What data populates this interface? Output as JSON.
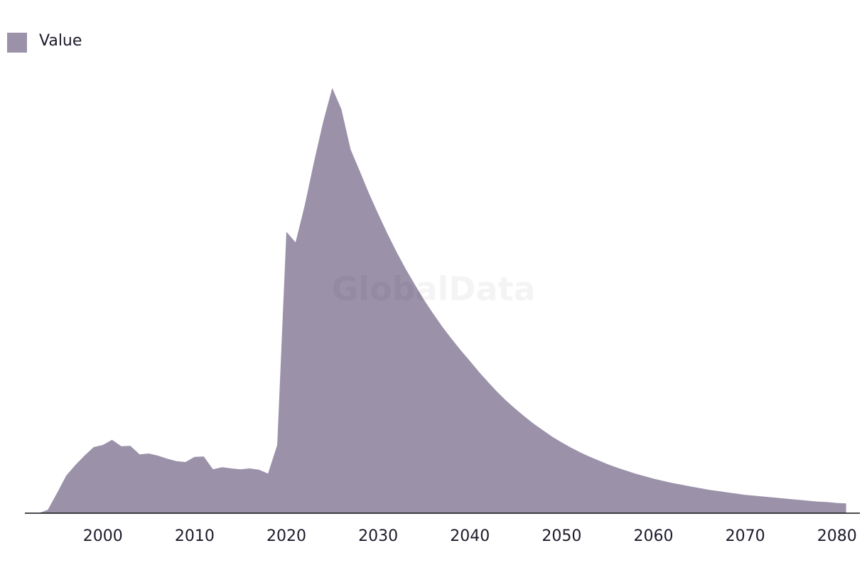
{
  "chart_data": {
    "type": "area",
    "watermark": "GlobalData",
    "x": [
      1993,
      1994,
      1995,
      1996,
      1997,
      1998,
      1999,
      2000,
      2001,
      2002,
      2003,
      2004,
      2005,
      2006,
      2007,
      2008,
      2009,
      2010,
      2011,
      2012,
      2013,
      2014,
      2015,
      2016,
      2017,
      2018,
      2019,
      2020,
      2021,
      2022,
      2023,
      2024,
      2025,
      2026,
      2027,
      2028,
      2029,
      2030,
      2031,
      2032,
      2033,
      2034,
      2035,
      2036,
      2037,
      2038,
      2039,
      2040,
      2041,
      2042,
      2043,
      2044,
      2045,
      2046,
      2047,
      2048,
      2049,
      2050,
      2051,
      2052,
      2053,
      2054,
      2055,
      2056,
      2057,
      2058,
      2059,
      2060,
      2061,
      2062,
      2063,
      2064,
      2065,
      2066,
      2067,
      2068,
      2069,
      2070,
      2071,
      2072,
      2073,
      2074,
      2075,
      2076,
      2077,
      2078,
      2079,
      2080,
      2081
    ],
    "series": [
      {
        "name": "Value",
        "color": "#9b92aa",
        "values": [
          0,
          0.8,
          4.7,
          8.8,
          11.3,
          13.5,
          15.5,
          16,
          17.2,
          15.7,
          15.8,
          13.8,
          14,
          13.5,
          12.8,
          12.2,
          12,
          13.2,
          13.3,
          10.3,
          10.8,
          10.5,
          10.3,
          10.5,
          10.2,
          9.3,
          16,
          66,
          63.5,
          72.2,
          82.3,
          91.7,
          99.7,
          94.7,
          85.3,
          80.2,
          75.0,
          70.2,
          65.6,
          61.3,
          57.3,
          53.6,
          50.0,
          46.8,
          43.7,
          40.9,
          38.2,
          35.7,
          33.1,
          30.7,
          28.4,
          26.3,
          24.4,
          22.6,
          20.9,
          19.4,
          17.9,
          16.6,
          15.4,
          14.3,
          13.3,
          12.4,
          11.5,
          10.7,
          10.0,
          9.3,
          8.7,
          8.1,
          7.6,
          7.1,
          6.7,
          6.3,
          5.9,
          5.5,
          5.2,
          4.9,
          4.6,
          4.3,
          4.1,
          3.9,
          3.7,
          3.5,
          3.3,
          3.1,
          2.9,
          2.7,
          2.6,
          2.4,
          2.3
        ]
      }
    ],
    "xlim": [
      1991.5,
      2082.5
    ],
    "xticks": [
      2000,
      2010,
      2020,
      2030,
      2040,
      2050,
      2060,
      2070,
      2080
    ],
    "ylim": [
      0,
      100
    ],
    "legend": "top-left"
  }
}
